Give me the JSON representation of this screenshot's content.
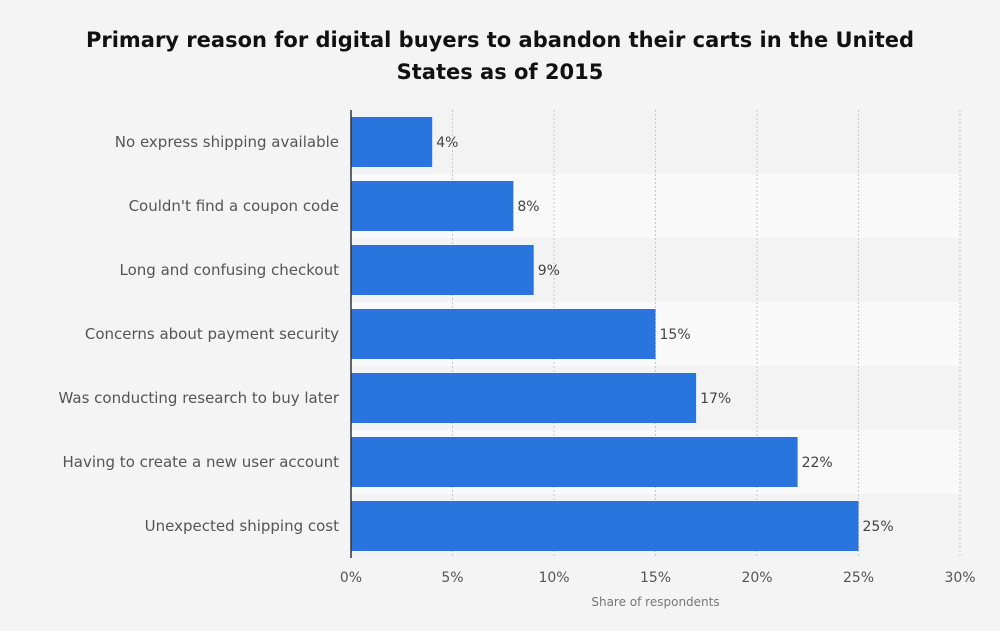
{
  "colors": {
    "background": "#f4f4f4",
    "bar": "#2876dd",
    "band_light": "#f9f9f9",
    "band_dark": "#f3f3f3",
    "grid": "#c8c8c8",
    "axis": "#333333"
  },
  "chart_data": {
    "type": "bar",
    "orientation": "horizontal",
    "title": "Primary reason for digital buyers to abandon their carts in the United States as of 2015",
    "xlabel": "Share of respondents",
    "ylabel": "",
    "categories": [
      "No express shipping available",
      "Couldn't find a coupon code",
      "Long and confusing checkout",
      "Concerns about payment security",
      "Was conducting research to buy later",
      "Having to create a new user account",
      "Unexpected shipping cost"
    ],
    "values": [
      4,
      8,
      9,
      15,
      17,
      22,
      25
    ],
    "value_labels": [
      "4%",
      "8%",
      "9%",
      "15%",
      "17%",
      "22%",
      "25%"
    ],
    "xlim": [
      0,
      30
    ],
    "x_ticks": [
      0,
      5,
      10,
      15,
      20,
      25,
      30
    ],
    "x_tick_labels": [
      "0%",
      "5%",
      "10%",
      "15%",
      "20%",
      "25%",
      "30%"
    ],
    "grid": true,
    "legend": false
  }
}
